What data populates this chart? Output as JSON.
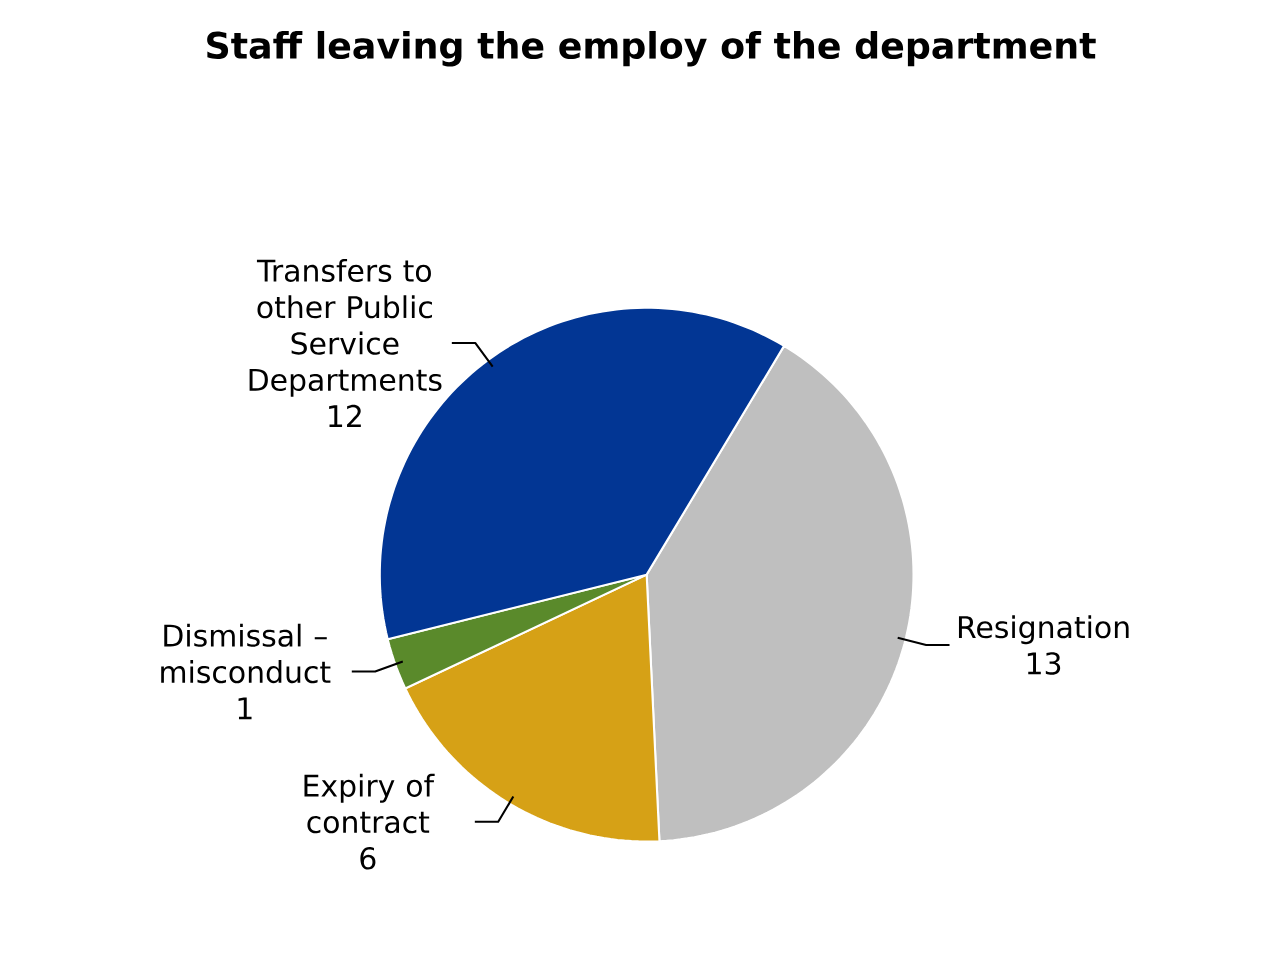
{
  "chart_data": {
    "type": "pie",
    "title": "Staff leaving the employ of the department",
    "categories": [
      "Resignation",
      "Expiry of contract",
      "Dismissal – misconduct",
      "Transfers to other Public Service Departments"
    ],
    "values": [
      13,
      6,
      1,
      12
    ],
    "colors": [
      "#bfbfbf",
      "#d6a116",
      "#5a8a2b",
      "#023694"
    ],
    "data_labels": true
  }
}
